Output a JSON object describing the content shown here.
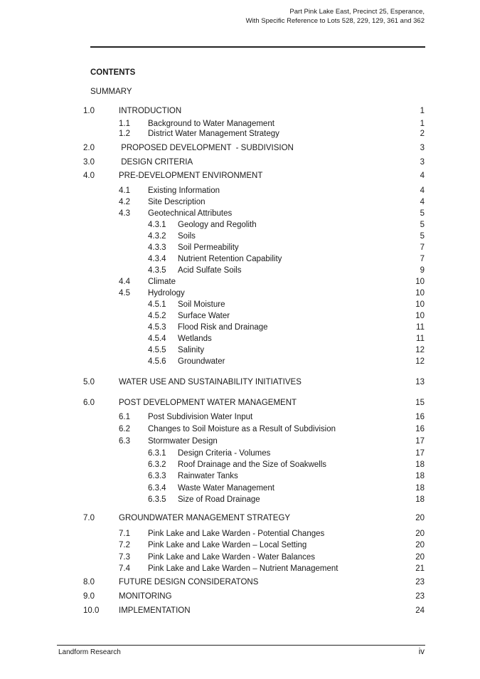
{
  "header": {
    "line1": "Part Pink Lake East, Precinct 25, Esperance,",
    "line2": "With Specific Reference to Lots 528, 229, 129, 361 and 362"
  },
  "contents_title": "CONTENTS",
  "summary_label": "SUMMARY",
  "entries": [
    {
      "level": 1,
      "num": "1.0",
      "title": "INTRODUCTION",
      "page": "1"
    },
    {
      "level": 2,
      "num": "1.1",
      "title": "Background to Water Management",
      "page": "1"
    },
    {
      "level": 2,
      "num": "1.2",
      "title": "District Water Management Strategy",
      "page": "2"
    },
    {
      "level": 1,
      "num": "2.0",
      "title": " PROPOSED DEVELOPMENT  - SUBDIVISION",
      "page": "3"
    },
    {
      "level": 1,
      "num": "3.0",
      "title": " DESIGN CRITERIA",
      "page": "3"
    },
    {
      "level": 1,
      "num": "4.0",
      "title": "PRE-DEVELOPMENT ENVIRONMENT",
      "page": "4"
    },
    {
      "level": 2,
      "num": "4.1",
      "title": "Existing Information",
      "page": "4"
    },
    {
      "level": 2,
      "num": "4.2",
      "title": "Site Description",
      "page": "4"
    },
    {
      "level": 2,
      "num": "4.3",
      "title": "Geotechnical Attributes",
      "page": "5"
    },
    {
      "level": 3,
      "num": "4.3.1",
      "title": "Geology and Regolith",
      "page": "5"
    },
    {
      "level": 3,
      "num": "4.3.2",
      "title": "Soils",
      "page": "5"
    },
    {
      "level": 3,
      "num": "4.3.3",
      "title": "Soil Permeability",
      "page": "7"
    },
    {
      "level": 3,
      "num": "4.3.4",
      "title": "Nutrient Retention Capability",
      "page": "7"
    },
    {
      "level": 3,
      "num": "4.3.5",
      "title": "Acid Sulfate Soils",
      "page": "9"
    },
    {
      "level": 2,
      "num": "4.4",
      "title": "Climate",
      "page": "10"
    },
    {
      "level": 2,
      "num": "4.5",
      "title": "Hydrology",
      "page": "10"
    },
    {
      "level": 3,
      "num": "4.5.1",
      "title": "Soil Moisture",
      "page": "10"
    },
    {
      "level": 3,
      "num": "4.5.2",
      "title": "Surface Water",
      "page": "10"
    },
    {
      "level": 3,
      "num": "4.5.3",
      "title": "Flood Risk and Drainage",
      "page": "11"
    },
    {
      "level": 3,
      "num": "4.5.4",
      "title": "Wetlands",
      "page": "11"
    },
    {
      "level": 3,
      "num": "4.5.5",
      "title": "Salinity",
      "page": "12"
    },
    {
      "level": 3,
      "num": "4.5.6",
      "title": "Groundwater",
      "page": "12"
    },
    {
      "level": 1,
      "num": "5.0",
      "title": "WATER USE AND SUSTAINABILITY INITIATIVES",
      "page": "13"
    },
    {
      "level": 1,
      "num": "6.0",
      "title": "POST DEVELOPMENT WATER MANAGEMENT",
      "page": "15"
    },
    {
      "level": 2,
      "num": "6.1",
      "title": "Post Subdivision Water Input",
      "page": "16"
    },
    {
      "level": 2,
      "num": "6.2",
      "title": "Changes to Soil Moisture as a Result of Subdivision",
      "page": "16"
    },
    {
      "level": 2,
      "num": "6.3",
      "title": "Stormwater Design",
      "page": "17"
    },
    {
      "level": 3,
      "num": "6.3.1",
      "title": "Design Criteria - Volumes",
      "page": "17"
    },
    {
      "level": 3,
      "num": "6.3.2",
      "title": "Roof Drainage and the Size of Soakwells",
      "page": "18"
    },
    {
      "level": 3,
      "num": "6.3.3",
      "title": "Rainwater Tanks",
      "page": "18"
    },
    {
      "level": 3,
      "num": "6.3.4",
      "title": "Waste Water Management",
      "page": "18"
    },
    {
      "level": 3,
      "num": "6.3.5",
      "title": "Size of Road Drainage",
      "page": "18"
    },
    {
      "level": 1,
      "num": "7.0",
      "title": "GROUNDWATER MANAGEMENT STRATEGY",
      "page": "20"
    },
    {
      "level": 2,
      "num": "7.1",
      "title": "Pink Lake and Lake Warden - Potential Changes",
      "page": "20"
    },
    {
      "level": 2,
      "num": "7.2",
      "title": "Pink Lake and Lake Warden – Local Setting",
      "page": "20"
    },
    {
      "level": 2,
      "num": "7.3",
      "title": "Pink Lake and Lake Warden - Water Balances",
      "page": "20"
    },
    {
      "level": 2,
      "num": "7.4",
      "title": "Pink Lake and Lake Warden – Nutrient Management",
      "page": "21"
    },
    {
      "level": 1,
      "num": "8.0",
      "title": "FUTURE DESIGN CONSIDERATONS",
      "page": "23"
    },
    {
      "level": 1,
      "num": "9.0",
      "title": "MONITORING",
      "page": "23"
    },
    {
      "level": 1,
      "num": "10.0",
      "title": "IMPLEMENTATION",
      "page": "24"
    }
  ],
  "footer": {
    "left": "Landform Research",
    "right": "iv"
  }
}
